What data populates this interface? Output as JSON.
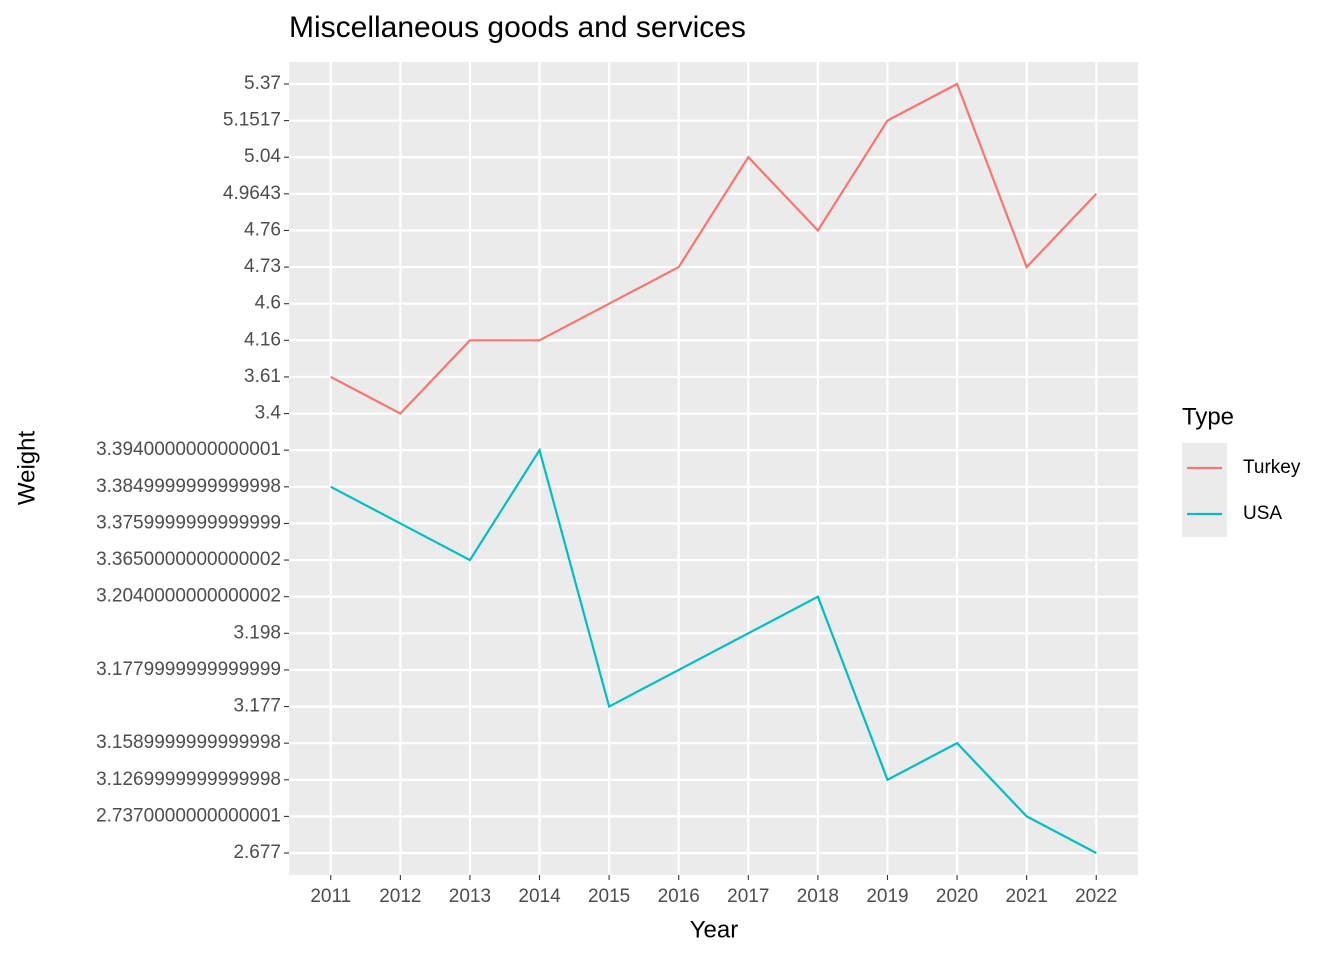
{
  "chart_data": {
    "type": "line",
    "title": "Miscellaneous goods and services",
    "x_label": "Year",
    "y_label": "Weight",
    "legend_title": "Type",
    "y_scale": "discrete",
    "grid": true,
    "categories": [
      "2011",
      "2012",
      "2013",
      "2014",
      "2015",
      "2016",
      "2017",
      "2018",
      "2019",
      "2020",
      "2021",
      "2022"
    ],
    "yticks": [
      2.677,
      {
        "value": 2.737,
        "label": "2.7370000000000001"
      },
      {
        "value": 3.127,
        "label": "3.1269999999999998"
      },
      {
        "value": 3.159,
        "label": "3.1589999999999998"
      },
      3.177,
      {
        "value": 3.178,
        "label": "3.1779999999999999"
      },
      3.198,
      {
        "value": 3.204,
        "label": "3.2040000000000002"
      },
      {
        "value": 3.365,
        "label": "3.3650000000000002"
      },
      {
        "value": 3.376,
        "label": "3.3759999999999999"
      },
      {
        "value": 3.385,
        "label": "3.3849999999999998"
      },
      {
        "value": 3.394,
        "label": "3.3940000000000001"
      },
      3.4,
      3.61,
      4.16,
      4.6,
      4.73,
      4.76,
      4.9643,
      5.04,
      5.1517,
      5.37
    ],
    "series": [
      {
        "name": "Turkey",
        "color": "#F8766D",
        "values": [
          3.61,
          3.4,
          4.16,
          4.16,
          4.6,
          4.73,
          5.04,
          4.76,
          5.1517,
          5.37,
          4.73,
          4.9643
        ]
      },
      {
        "name": "USA",
        "color": "#00BFC4",
        "values": [
          3.385,
          3.376,
          3.365,
          3.394,
          3.177,
          3.178,
          3.198,
          3.204,
          3.127,
          3.159,
          2.737,
          2.677
        ]
      }
    ]
  }
}
